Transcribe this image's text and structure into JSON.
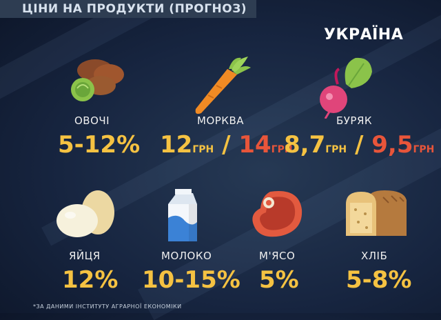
{
  "header": {
    "title": "ЦІНИ НА ПРОДУКТИ (ПРОГНОЗ)",
    "channel_logo": "УКРАЇНА"
  },
  "products": [
    {
      "id": "vegetables",
      "icon": "vegetables-icon",
      "label": "ОВОЧІ",
      "value": "5-12%"
    },
    {
      "id": "carrot",
      "icon": "carrot-icon",
      "label": "МОРКВА",
      "value_from": "12",
      "unit_from": "ГРН",
      "separator": "/",
      "value_to": "14",
      "unit_to": "ГРН"
    },
    {
      "id": "beet",
      "icon": "beet-icon",
      "label": "БУРЯК",
      "value_from": "8,7",
      "unit_from": "ГРН",
      "separator": "/",
      "value_to": "9,5",
      "unit_to": "ГРН"
    },
    {
      "id": "eggs",
      "icon": "eggs-icon",
      "label": "ЯЙЦЯ",
      "value": "12%"
    },
    {
      "id": "milk",
      "icon": "milk-icon",
      "label": "МОЛОКО",
      "value": "10-15%"
    },
    {
      "id": "meat",
      "icon": "meat-icon",
      "label": "М'ЯСО",
      "value": "5%"
    },
    {
      "id": "bread",
      "icon": "bread-icon",
      "label": "ХЛІБ",
      "value": "5-8%"
    }
  ],
  "footnote": "*ЗА ДАНИМИ ІНСТИТУТУ АГРАРНОЇ ЕКОНОМІКИ",
  "colors": {
    "value": "#f5c242",
    "value_new": "#e8553a",
    "background": "#172540"
  }
}
